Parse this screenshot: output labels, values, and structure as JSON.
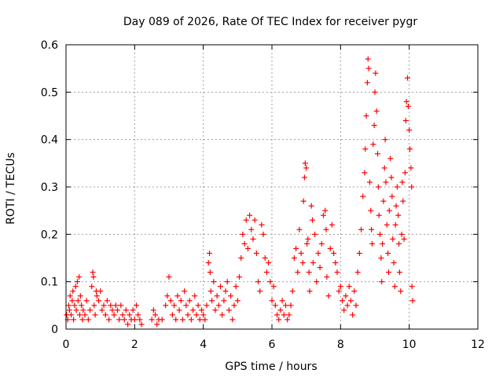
{
  "chart_data": {
    "type": "scatter",
    "title": "Day 089 of 2026, Rate Of TEC Index for receiver pygr",
    "xlabel": "GPS time / hours",
    "ylabel": "ROTI / TECUs",
    "xlim": [
      0,
      12
    ],
    "ylim": [
      0,
      0.6
    ],
    "xticks": [
      0,
      2,
      4,
      6,
      8,
      10,
      12
    ],
    "yticks": [
      0,
      0.1,
      0.2,
      0.3,
      0.4,
      0.5,
      0.6
    ],
    "grid": true,
    "marker": "+",
    "color": "#ff0000",
    "series": [
      {
        "points": [
          [
            0.02,
            0.03
          ],
          [
            0.05,
            0.02
          ],
          [
            0.08,
            0.05
          ],
          [
            0.1,
            0.04
          ],
          [
            0.12,
            0.07
          ],
          [
            0.15,
            0.03
          ],
          [
            0.18,
            0.06
          ],
          [
            0.2,
            0.08
          ],
          [
            0.22,
            0.02
          ],
          [
            0.25,
            0.05
          ],
          [
            0.28,
            0.09
          ],
          [
            0.3,
            0.04
          ],
          [
            0.33,
            0.1
          ],
          [
            0.35,
            0.06
          ],
          [
            0.38,
            0.11
          ],
          [
            0.4,
            0.03
          ],
          [
            0.42,
            0.07
          ],
          [
            0.45,
            0.05
          ],
          [
            0.48,
            0.02
          ],
          [
            0.5,
            0.04
          ],
          [
            0.55,
            0.03
          ],
          [
            0.6,
            0.06
          ],
          [
            0.65,
            0.02
          ],
          [
            0.7,
            0.04
          ],
          [
            0.75,
            0.09
          ],
          [
            0.78,
            0.12
          ],
          [
            0.8,
            0.11
          ],
          [
            0.82,
            0.05
          ],
          [
            0.85,
            0.03
          ],
          [
            0.88,
            0.08
          ],
          [
            0.9,
            0.07
          ],
          [
            0.95,
            0.06
          ],
          [
            1.0,
            0.08
          ],
          [
            1.05,
            0.04
          ],
          [
            1.1,
            0.05
          ],
          [
            1.15,
            0.03
          ],
          [
            1.2,
            0.06
          ],
          [
            1.25,
            0.02
          ],
          [
            1.3,
            0.05
          ],
          [
            1.35,
            0.04
          ],
          [
            1.4,
            0.03
          ],
          [
            1.45,
            0.05
          ],
          [
            1.5,
            0.04
          ],
          [
            1.55,
            0.02
          ],
          [
            1.6,
            0.05
          ],
          [
            1.65,
            0.03
          ],
          [
            1.7,
            0.02
          ],
          [
            1.75,
            0.04
          ],
          [
            1.8,
            0.01
          ],
          [
            1.85,
            0.03
          ],
          [
            1.9,
            0.02
          ],
          [
            1.95,
            0.04
          ],
          [
            2.0,
            0.02
          ],
          [
            2.05,
            0.05
          ],
          [
            2.1,
            0.03
          ],
          [
            2.15,
            0.02
          ],
          [
            2.2,
            0.01
          ],
          [
            2.5,
            0.02
          ],
          [
            2.55,
            0.04
          ],
          [
            2.6,
            0.03
          ],
          [
            2.65,
            0.01
          ],
          [
            2.7,
            0.02
          ],
          [
            2.8,
            0.02
          ],
          [
            2.9,
            0.05
          ],
          [
            2.95,
            0.07
          ],
          [
            3.0,
            0.11
          ],
          [
            3.05,
            0.06
          ],
          [
            3.1,
            0.03
          ],
          [
            3.15,
            0.05
          ],
          [
            3.2,
            0.02
          ],
          [
            3.25,
            0.07
          ],
          [
            3.3,
            0.04
          ],
          [
            3.35,
            0.06
          ],
          [
            3.4,
            0.02
          ],
          [
            3.45,
            0.08
          ],
          [
            3.5,
            0.05
          ],
          [
            3.55,
            0.03
          ],
          [
            3.6,
            0.06
          ],
          [
            3.65,
            0.02
          ],
          [
            3.7,
            0.04
          ],
          [
            3.75,
            0.07
          ],
          [
            3.8,
            0.03
          ],
          [
            3.85,
            0.05
          ],
          [
            3.9,
            0.02
          ],
          [
            3.95,
            0.04
          ],
          [
            4.0,
            0.03
          ],
          [
            4.05,
            0.02
          ],
          [
            4.1,
            0.05
          ],
          [
            4.15,
            0.14
          ],
          [
            4.18,
            0.16
          ],
          [
            4.2,
            0.12
          ],
          [
            4.22,
            0.08
          ],
          [
            4.25,
            0.06
          ],
          [
            4.3,
            0.1
          ],
          [
            4.35,
            0.04
          ],
          [
            4.4,
            0.07
          ],
          [
            4.45,
            0.05
          ],
          [
            4.5,
            0.09
          ],
          [
            4.55,
            0.03
          ],
          [
            4.6,
            0.06
          ],
          [
            4.65,
            0.08
          ],
          [
            4.7,
            0.1
          ],
          [
            4.75,
            0.04
          ],
          [
            4.8,
            0.07
          ],
          [
            4.85,
            0.02
          ],
          [
            4.9,
            0.05
          ],
          [
            4.95,
            0.09
          ],
          [
            5.0,
            0.06
          ],
          [
            5.05,
            0.11
          ],
          [
            5.1,
            0.15
          ],
          [
            5.15,
            0.2
          ],
          [
            5.2,
            0.18
          ],
          [
            5.25,
            0.23
          ],
          [
            5.3,
            0.17
          ],
          [
            5.35,
            0.24
          ],
          [
            5.4,
            0.21
          ],
          [
            5.45,
            0.19
          ],
          [
            5.5,
            0.23
          ],
          [
            5.55,
            0.16
          ],
          [
            5.6,
            0.1
          ],
          [
            5.65,
            0.08
          ],
          [
            5.7,
            0.22
          ],
          [
            5.75,
            0.2
          ],
          [
            5.8,
            0.15
          ],
          [
            5.85,
            0.12
          ],
          [
            5.9,
            0.14
          ],
          [
            5.95,
            0.1
          ],
          [
            6.0,
            0.06
          ],
          [
            6.05,
            0.09
          ],
          [
            6.1,
            0.05
          ],
          [
            6.15,
            0.03
          ],
          [
            6.2,
            0.02
          ],
          [
            6.25,
            0.04
          ],
          [
            6.3,
            0.06
          ],
          [
            6.35,
            0.03
          ],
          [
            6.4,
            0.05
          ],
          [
            6.45,
            0.02
          ],
          [
            6.5,
            0.03
          ],
          [
            6.55,
            0.05
          ],
          [
            6.6,
            0.08
          ],
          [
            6.65,
            0.15
          ],
          [
            6.7,
            0.17
          ],
          [
            6.75,
            0.12
          ],
          [
            6.8,
            0.21
          ],
          [
            6.85,
            0.16
          ],
          [
            6.9,
            0.14
          ],
          [
            6.92,
            0.27
          ],
          [
            6.95,
            0.32
          ],
          [
            6.97,
            0.35
          ],
          [
            7.0,
            0.34
          ],
          [
            7.02,
            0.18
          ],
          [
            7.05,
            0.19
          ],
          [
            7.08,
            0.12
          ],
          [
            7.1,
            0.08
          ],
          [
            7.15,
            0.26
          ],
          [
            7.18,
            0.23
          ],
          [
            7.2,
            0.14
          ],
          [
            7.25,
            0.2
          ],
          [
            7.3,
            0.1
          ],
          [
            7.35,
            0.16
          ],
          [
            7.4,
            0.13
          ],
          [
            7.45,
            0.18
          ],
          [
            7.5,
            0.24
          ],
          [
            7.55,
            0.25
          ],
          [
            7.58,
            0.21
          ],
          [
            7.6,
            0.11
          ],
          [
            7.65,
            0.07
          ],
          [
            7.7,
            0.17
          ],
          [
            7.75,
            0.22
          ],
          [
            7.8,
            0.16
          ],
          [
            7.85,
            0.14
          ],
          [
            7.9,
            0.12
          ],
          [
            7.95,
            0.08
          ],
          [
            8.0,
            0.09
          ],
          [
            8.05,
            0.06
          ],
          [
            8.1,
            0.04
          ],
          [
            8.15,
            0.07
          ],
          [
            8.2,
            0.05
          ],
          [
            8.25,
            0.09
          ],
          [
            8.3,
            0.06
          ],
          [
            8.35,
            0.03
          ],
          [
            8.4,
            0.08
          ],
          [
            8.45,
            0.05
          ],
          [
            8.5,
            0.12
          ],
          [
            8.55,
            0.16
          ],
          [
            8.6,
            0.21
          ],
          [
            8.65,
            0.28
          ],
          [
            8.7,
            0.33
          ],
          [
            8.72,
            0.38
          ],
          [
            8.75,
            0.45
          ],
          [
            8.78,
            0.52
          ],
          [
            8.8,
            0.57
          ],
          [
            8.82,
            0.55
          ],
          [
            8.85,
            0.31
          ],
          [
            8.88,
            0.25
          ],
          [
            8.9,
            0.21
          ],
          [
            8.92,
            0.18
          ],
          [
            8.95,
            0.39
          ],
          [
            8.98,
            0.43
          ],
          [
            9.0,
            0.5
          ],
          [
            9.02,
            0.54
          ],
          [
            9.05,
            0.46
          ],
          [
            9.08,
            0.37
          ],
          [
            9.1,
            0.3
          ],
          [
            9.12,
            0.24
          ],
          [
            9.15,
            0.2
          ],
          [
            9.18,
            0.15
          ],
          [
            9.2,
            0.1
          ],
          [
            9.22,
            0.18
          ],
          [
            9.25,
            0.27
          ],
          [
            9.28,
            0.34
          ],
          [
            9.3,
            0.4
          ],
          [
            9.32,
            0.31
          ],
          [
            9.35,
            0.22
          ],
          [
            9.38,
            0.16
          ],
          [
            9.4,
            0.12
          ],
          [
            9.42,
            0.25
          ],
          [
            9.45,
            0.36
          ],
          [
            9.48,
            0.32
          ],
          [
            9.5,
            0.28
          ],
          [
            9.52,
            0.19
          ],
          [
            9.55,
            0.14
          ],
          [
            9.58,
            0.09
          ],
          [
            9.6,
            0.22
          ],
          [
            9.62,
            0.26
          ],
          [
            9.65,
            0.3
          ],
          [
            9.68,
            0.24
          ],
          [
            9.7,
            0.18
          ],
          [
            9.72,
            0.12
          ],
          [
            9.75,
            0.08
          ],
          [
            9.78,
            0.2
          ],
          [
            9.8,
            0.31
          ],
          [
            9.82,
            0.27
          ],
          [
            9.85,
            0.19
          ],
          [
            9.88,
            0.33
          ],
          [
            9.9,
            0.44
          ],
          [
            9.92,
            0.48
          ],
          [
            9.95,
            0.53
          ],
          [
            9.97,
            0.47
          ],
          [
            10.0,
            0.42
          ],
          [
            10.02,
            0.38
          ],
          [
            10.05,
            0.34
          ],
          [
            10.07,
            0.3
          ],
          [
            10.08,
            0.09
          ],
          [
            10.1,
            0.06
          ]
        ]
      }
    ]
  }
}
